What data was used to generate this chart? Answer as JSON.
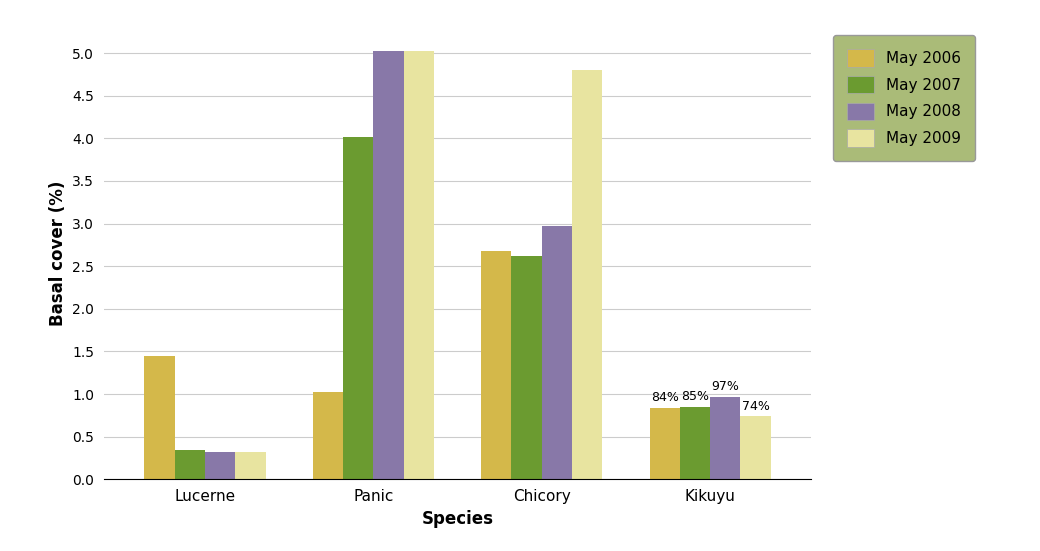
{
  "categories": [
    "Lucerne",
    "Panic",
    "Chicory",
    "Kikuyu"
  ],
  "series": {
    "May 2006": [
      1.45,
      1.02,
      2.68,
      0.84
    ],
    "May 2007": [
      0.35,
      4.02,
      2.62,
      0.85
    ],
    "May 2008": [
      0.32,
      5.02,
      2.97,
      0.97
    ],
    "May 2009": [
      0.32,
      5.02,
      4.8,
      0.74
    ]
  },
  "colors": {
    "May 2006": "#D4B84A",
    "May 2007": "#6B9B30",
    "May 2008": "#8878A8",
    "May 2009": "#E8E4A0"
  },
  "kikuyu_labels": {
    "May 2006": "84%",
    "May 2007": "85%",
    "May 2008": "97%",
    "May 2009": "74%"
  },
  "ylabel": "Basal cover (%)",
  "xlabel": "Species",
  "ylim": [
    0,
    5.3
  ],
  "yticks": [
    0,
    0.5,
    1.0,
    1.5,
    2.0,
    2.5,
    3.0,
    3.5,
    4.0,
    4.5,
    5.0
  ],
  "legend_box_color": "#AABB78",
  "background_color": "#FFFFFF",
  "bar_width": 0.18
}
